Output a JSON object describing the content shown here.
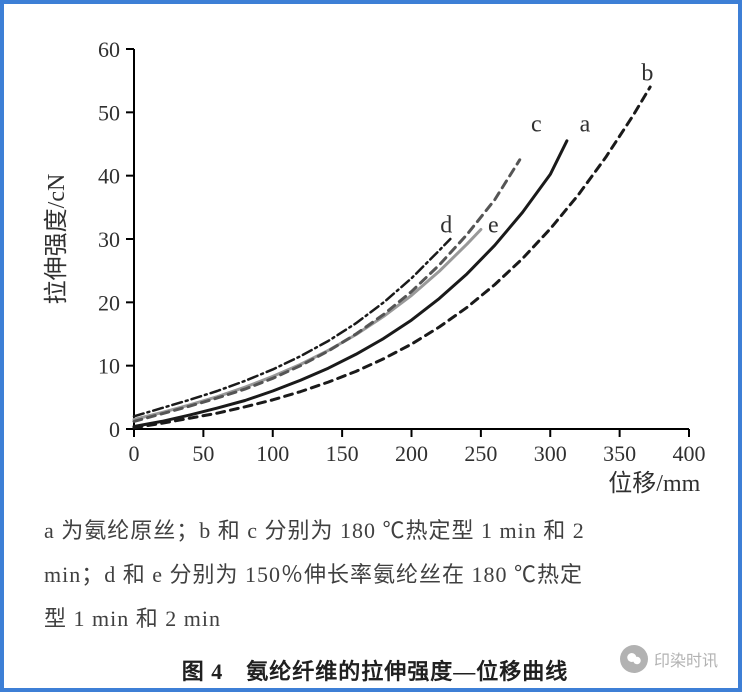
{
  "chart": {
    "type": "line",
    "background_color": "#ffffff",
    "border_color": "#3d7fd6",
    "x_axis": {
      "title": "位移/mm",
      "min": 0,
      "max": 400,
      "tick_step": 50,
      "ticks": [
        0,
        50,
        100,
        150,
        200,
        250,
        300,
        350,
        400
      ],
      "title_fontsize": 24,
      "tick_fontsize": 22
    },
    "y_axis": {
      "title": "拉伸强度/cN",
      "min": 0,
      "max": 60,
      "tick_step": 10,
      "ticks": [
        0,
        10,
        20,
        30,
        40,
        50,
        60
      ],
      "title_fontsize": 24,
      "tick_fontsize": 22
    },
    "series": {
      "a": {
        "label": "a",
        "color": "#1a1a1a",
        "width": 3,
        "dash": "none",
        "label_pos": {
          "x": 325,
          "y": 47
        },
        "points": [
          {
            "x": 0,
            "y": 0.4
          },
          {
            "x": 20,
            "y": 1.2
          },
          {
            "x": 40,
            "y": 2.2
          },
          {
            "x": 60,
            "y": 3.3
          },
          {
            "x": 80,
            "y": 4.5
          },
          {
            "x": 100,
            "y": 6.0
          },
          {
            "x": 120,
            "y": 7.7
          },
          {
            "x": 140,
            "y": 9.6
          },
          {
            "x": 160,
            "y": 11.8
          },
          {
            "x": 180,
            "y": 14.3
          },
          {
            "x": 200,
            "y": 17.2
          },
          {
            "x": 220,
            "y": 20.6
          },
          {
            "x": 240,
            "y": 24.5
          },
          {
            "x": 260,
            "y": 29.0
          },
          {
            "x": 280,
            "y": 34.2
          },
          {
            "x": 300,
            "y": 40.2
          },
          {
            "x": 312,
            "y": 45.5
          }
        ]
      },
      "b": {
        "label": "b",
        "color": "#1a1a1a",
        "width": 3,
        "dash": "8,6",
        "label_pos": {
          "x": 370,
          "y": 55
        },
        "points": [
          {
            "x": 0,
            "y": 0.2
          },
          {
            "x": 20,
            "y": 0.9
          },
          {
            "x": 40,
            "y": 1.7
          },
          {
            "x": 60,
            "y": 2.5
          },
          {
            "x": 80,
            "y": 3.5
          },
          {
            "x": 100,
            "y": 4.6
          },
          {
            "x": 120,
            "y": 5.9
          },
          {
            "x": 140,
            "y": 7.4
          },
          {
            "x": 160,
            "y": 9.1
          },
          {
            "x": 180,
            "y": 11.1
          },
          {
            "x": 200,
            "y": 13.4
          },
          {
            "x": 220,
            "y": 16.1
          },
          {
            "x": 240,
            "y": 19.2
          },
          {
            "x": 260,
            "y": 22.8
          },
          {
            "x": 280,
            "y": 26.9
          },
          {
            "x": 300,
            "y": 31.6
          },
          {
            "x": 320,
            "y": 36.9
          },
          {
            "x": 340,
            "y": 42.9
          },
          {
            "x": 360,
            "y": 49.6
          },
          {
            "x": 372,
            "y": 54.0
          }
        ]
      },
      "c": {
        "label": "c",
        "color": "#555555",
        "width": 3,
        "dash": "8,6",
        "label_pos": {
          "x": 290,
          "y": 47
        },
        "points": [
          {
            "x": 0,
            "y": 1.2
          },
          {
            "x": 20,
            "y": 2.4
          },
          {
            "x": 40,
            "y": 3.6
          },
          {
            "x": 60,
            "y": 4.9
          },
          {
            "x": 80,
            "y": 6.3
          },
          {
            "x": 100,
            "y": 8.0
          },
          {
            "x": 120,
            "y": 10.0
          },
          {
            "x": 140,
            "y": 12.3
          },
          {
            "x": 160,
            "y": 15.0
          },
          {
            "x": 180,
            "y": 18.1
          },
          {
            "x": 200,
            "y": 21.7
          },
          {
            "x": 220,
            "y": 25.9
          },
          {
            "x": 240,
            "y": 30.7
          },
          {
            "x": 260,
            "y": 36.2
          },
          {
            "x": 278,
            "y": 42.5
          }
        ]
      },
      "d": {
        "label": "d",
        "color": "#1a1a1a",
        "width": 2.5,
        "dash": "10,4,2,4",
        "label_pos": {
          "x": 225,
          "y": 31
        },
        "points": [
          {
            "x": 0,
            "y": 2.0
          },
          {
            "x": 20,
            "y": 3.3
          },
          {
            "x": 40,
            "y": 4.6
          },
          {
            "x": 60,
            "y": 6.0
          },
          {
            "x": 80,
            "y": 7.6
          },
          {
            "x": 100,
            "y": 9.4
          },
          {
            "x": 120,
            "y": 11.5
          },
          {
            "x": 140,
            "y": 13.9
          },
          {
            "x": 160,
            "y": 16.7
          },
          {
            "x": 180,
            "y": 20.0
          },
          {
            "x": 200,
            "y": 23.8
          },
          {
            "x": 220,
            "y": 28.2
          },
          {
            "x": 228,
            "y": 30.0
          }
        ]
      },
      "e": {
        "label": "e",
        "color": "#999999",
        "width": 3,
        "dash": "none",
        "label_pos": {
          "x": 259,
          "y": 31
        },
        "points": [
          {
            "x": 0,
            "y": 1.5
          },
          {
            "x": 20,
            "y": 2.6
          },
          {
            "x": 40,
            "y": 3.8
          },
          {
            "x": 60,
            "y": 5.1
          },
          {
            "x": 80,
            "y": 6.6
          },
          {
            "x": 100,
            "y": 8.3
          },
          {
            "x": 120,
            "y": 10.2
          },
          {
            "x": 140,
            "y": 12.4
          },
          {
            "x": 160,
            "y": 14.9
          },
          {
            "x": 180,
            "y": 17.8
          },
          {
            "x": 200,
            "y": 21.1
          },
          {
            "x": 220,
            "y": 24.9
          },
          {
            "x": 240,
            "y": 29.2
          },
          {
            "x": 250,
            "y": 31.5
          }
        ]
      }
    }
  },
  "caption": {
    "line1": "a 为氨纶原丝；b 和 c 分别为 180 ℃热定型 1 min 和 2",
    "line2": "min；d 和 e 分别为 150％伸长率氨纶丝在 180 ℃热定",
    "line3": "型 1 min 和 2 min"
  },
  "figure_title": "图 4　氨纶纤维的拉伸强度—位移曲线",
  "watermark": {
    "text": "印染时讯",
    "icon_name": "wechat-icon"
  }
}
